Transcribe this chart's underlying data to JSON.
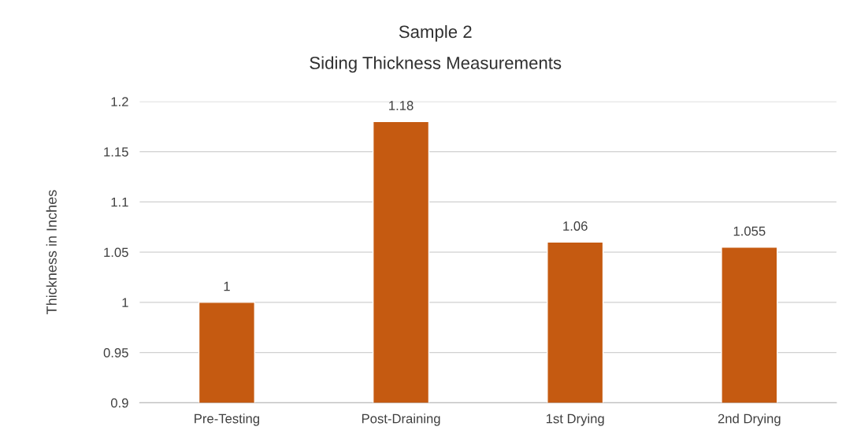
{
  "chart_data": {
    "type": "bar",
    "title": "Sample 2",
    "subtitle": "Siding Thickness Measurements",
    "ylabel": "Thickness in Inches",
    "categories": [
      "Pre-Testing",
      "Post-Draining",
      "1st Drying",
      "2nd Drying"
    ],
    "values": [
      1,
      1.18,
      1.06,
      1.055
    ],
    "color": "#c55a11",
    "ylim": [
      0.9,
      1.2
    ],
    "yticks": [
      0.9,
      0.95,
      1,
      1.05,
      1.1,
      1.15,
      1.2
    ],
    "grid": "y",
    "data_labels": true
  }
}
